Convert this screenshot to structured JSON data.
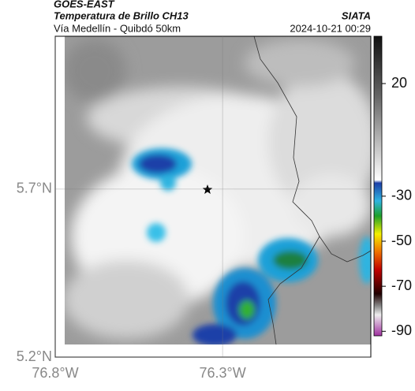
{
  "header": {
    "title": "GOES-EAST",
    "subtitle": "Temperatura de Brillo CH13",
    "location": "Vía Medellín - Quibdó 50km",
    "source": "SIATA",
    "datetime": "2024-10-21 00:29"
  },
  "map": {
    "xlim": [
      -76.8,
      -75.857
    ],
    "ylim": [
      5.2,
      6.155
    ],
    "xticks": [
      {
        "value": -76.8,
        "label": "76.8°W"
      },
      {
        "value": -76.3,
        "label": "76.3°W"
      }
    ],
    "yticks": [
      {
        "value": 5.2,
        "label": "5.2°N"
      },
      {
        "value": 5.7,
        "label": "5.7°N"
      }
    ],
    "grid": true
  },
  "colorbar": {
    "lim": [
      -92,
      41
    ],
    "ticks": [
      20,
      -30,
      -50,
      -70,
      -90
    ]
  }
}
